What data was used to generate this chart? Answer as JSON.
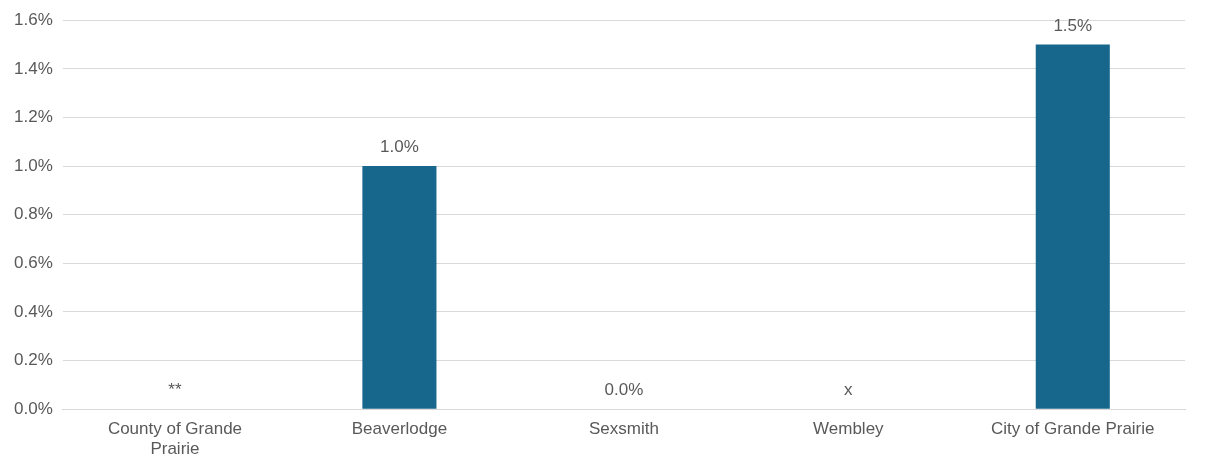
{
  "chart_data": {
    "type": "bar",
    "categories": [
      "County of Grande Prairie",
      "Beaverlodge",
      "Sexsmith",
      "Wembley",
      "City of Grande Prairie"
    ],
    "values": [
      null,
      1.0,
      0.0,
      null,
      1.5
    ],
    "value_labels": [
      "**",
      "1.0%",
      "0.0%",
      "x",
      "1.5%"
    ],
    "color": "#17668c",
    "ylim": [
      0,
      1.6
    ],
    "yticks": [
      {
        "value": 0,
        "label": "0.0%"
      },
      {
        "value": 0.2,
        "label": "0.2%"
      },
      {
        "value": 0.4,
        "label": "0.4%"
      },
      {
        "value": 0.6,
        "label": "0.6%"
      },
      {
        "value": 0.8,
        "label": "0.8%"
      },
      {
        "value": 1.0,
        "label": "1.0%"
      },
      {
        "value": 1.2,
        "label": "1.2%"
      },
      {
        "value": 1.4,
        "label": "1.4%"
      },
      {
        "value": 1.6,
        "label": "1.6%"
      }
    ],
    "grid": "y",
    "legend": false
  }
}
